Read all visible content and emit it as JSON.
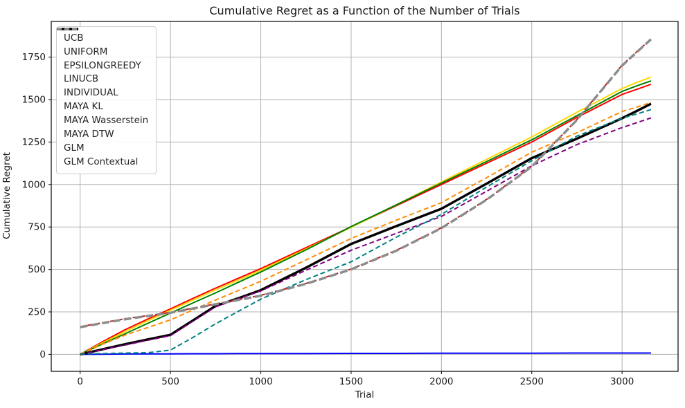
{
  "chart_data": {
    "type": "line",
    "title": "Cumulative Regret as a Function of the Number of Trials",
    "xlabel": "Trial",
    "ylabel": "Cumulative Regret",
    "xlim": [
      -160,
      3310
    ],
    "ylim": [
      -100,
      1960
    ],
    "xticks": [
      0,
      500,
      1000,
      1500,
      2000,
      2500,
      3000
    ],
    "yticks": [
      0,
      250,
      500,
      750,
      1000,
      1250,
      1500,
      1750
    ],
    "grid": true,
    "grid_color": "#b0b0b0",
    "legend_position": "upper-left",
    "x": [
      0,
      125,
      250,
      375,
      500,
      625,
      750,
      875,
      1000,
      1250,
      1500,
      1750,
      2000,
      2250,
      2500,
      2750,
      3000,
      3080,
      3160
    ],
    "series": [
      {
        "name": "UCB",
        "color": "#ff0000",
        "style": "solid",
        "width": 2,
        "values": [
          0,
          75,
          146,
          208,
          268,
          330,
          390,
          448,
          505,
          628,
          750,
          875,
          1000,
          1125,
          1250,
          1395,
          1530,
          1560,
          1590
        ]
      },
      {
        "name": "UNIFORM",
        "color": "#ffd700",
        "style": "solid",
        "width": 2,
        "values": [
          0,
          68,
          135,
          198,
          260,
          320,
          380,
          438,
          495,
          620,
          748,
          880,
          1015,
          1148,
          1280,
          1425,
          1565,
          1600,
          1632
        ]
      },
      {
        "name": "EPSILONGREEDY",
        "color": "#008000",
        "style": "solid",
        "width": 2,
        "values": [
          0,
          62,
          122,
          183,
          243,
          303,
          362,
          424,
          485,
          615,
          752,
          880,
          1008,
          1135,
          1263,
          1405,
          1548,
          1580,
          1610
        ]
      },
      {
        "name": "LINUCB",
        "color": "#0000ff",
        "style": "solid",
        "width": 2,
        "values": [
          0,
          1,
          2,
          3,
          3,
          4,
          4,
          5,
          5,
          5,
          6,
          6,
          7,
          7,
          7,
          8,
          8,
          8,
          8
        ]
      },
      {
        "name": "INDIVIDUAL",
        "color": "#000000",
        "style": "solid",
        "width": 3.5,
        "values": [
          0,
          30,
          60,
          88,
          115,
          200,
          285,
          330,
          378,
          510,
          650,
          755,
          857,
          1005,
          1155,
          1270,
          1390,
          1432,
          1475
        ]
      },
      {
        "name": "MAYA KL",
        "color": "#ff8c00",
        "style": "dashed",
        "width": 2,
        "values": [
          0,
          60,
          114,
          158,
          203,
          262,
          320,
          375,
          430,
          556,
          682,
          790,
          893,
          1040,
          1190,
          1305,
          1430,
          1455,
          1483
        ]
      },
      {
        "name": "MAYA Wasserstein",
        "color": "#800080",
        "style": "dashed",
        "width": 2,
        "values": [
          0,
          28,
          55,
          83,
          110,
          195,
          280,
          327,
          373,
          495,
          613,
          712,
          812,
          960,
          1110,
          1235,
          1335,
          1363,
          1392
        ]
      },
      {
        "name": "MAYA DTW",
        "color": "#008080",
        "style": "dashed",
        "width": 2,
        "values": [
          3,
          5,
          8,
          10,
          25,
          100,
          180,
          253,
          325,
          440,
          545,
          690,
          824,
          985,
          1140,
          1285,
          1390,
          1415,
          1441
        ]
      },
      {
        "name": "GLM",
        "color": "#b22222",
        "style": "dashed",
        "width": 2,
        "values": [
          163,
          186,
          210,
          228,
          247,
          272,
          297,
          322,
          348,
          417,
          502,
          612,
          745,
          912,
          1107,
          1382,
          1702,
          1780,
          1857
        ]
      },
      {
        "name": "GLM Contextual",
        "color": "#8c8c8c",
        "style": "dashed",
        "width": 3.5,
        "values": [
          160,
          184,
          207,
          226,
          245,
          270,
          295,
          320,
          345,
          415,
          500,
          610,
          743,
          910,
          1105,
          1380,
          1700,
          1778,
          1855
        ]
      }
    ]
  }
}
